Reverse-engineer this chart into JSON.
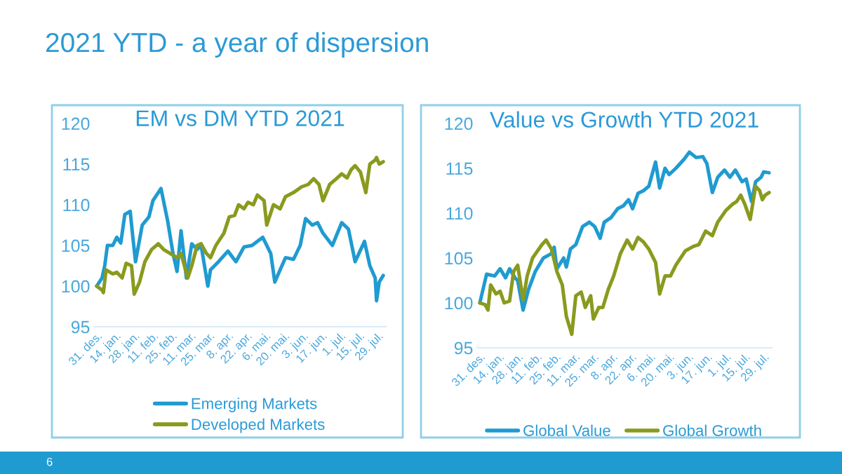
{
  "chart_data": [
    {
      "type": "line",
      "title": "EM vs DM YTD 2021",
      "annotations": [
        "2021 YTD - a year of dispersion",
        "6"
      ],
      "legend": "bottom",
      "grid": false,
      "ylim": [
        95,
        120
      ],
      "yticks": [
        95,
        100,
        105,
        110,
        115,
        120
      ],
      "xlim": [
        "2020-12-29",
        "2021-08-04"
      ],
      "xticks": [
        {
          "value": "2020-12-31",
          "label": "31. des."
        },
        {
          "value": "2021-01-14",
          "label": "14. jan."
        },
        {
          "value": "2021-01-28",
          "label": "28. jan."
        },
        {
          "value": "2021-02-11",
          "label": "11. feb."
        },
        {
          "value": "2021-02-25",
          "label": "25. feb."
        },
        {
          "value": "2021-03-11",
          "label": "11. mar."
        },
        {
          "value": "2021-03-25",
          "label": "25. mar."
        },
        {
          "value": "2021-04-08",
          "label": "8. apr."
        },
        {
          "value": "2021-04-22",
          "label": "22. apr."
        },
        {
          "value": "2021-05-06",
          "label": "6. mai."
        },
        {
          "value": "2021-05-20",
          "label": "20. mai."
        },
        {
          "value": "2021-06-03",
          "label": "3. jun."
        },
        {
          "value": "2021-06-17",
          "label": "17. jun."
        },
        {
          "value": "2021-07-01",
          "label": "1. jul."
        },
        {
          "value": "2021-07-15",
          "label": "15. jul."
        },
        {
          "value": "2021-07-29",
          "label": "29. jul."
        }
      ],
      "series": [
        {
          "name": "Emerging Markets",
          "color": "#1f9bd1",
          "x": [
            "2020-12-31",
            "2021-01-04",
            "2021-01-06",
            "2021-01-08",
            "2021-01-12",
            "2021-01-15",
            "2021-01-18",
            "2021-01-21",
            "2021-01-25",
            "2021-01-27",
            "2021-01-29",
            "2021-02-03",
            "2021-02-08",
            "2021-02-11",
            "2021-02-17",
            "2021-02-22",
            "2021-02-26",
            "2021-03-01",
            "2021-03-04",
            "2021-03-08",
            "2021-03-12",
            "2021-03-16",
            "2021-03-19",
            "2021-03-24",
            "2021-03-26",
            "2021-04-01",
            "2021-04-08",
            "2021-04-14",
            "2021-04-20",
            "2021-04-26",
            "2021-05-04",
            "2021-05-10",
            "2021-05-13",
            "2021-05-17",
            "2021-05-21",
            "2021-05-27",
            "2021-06-01",
            "2021-06-05",
            "2021-06-10",
            "2021-06-14",
            "2021-06-18",
            "2021-06-25",
            "2021-07-02",
            "2021-07-07",
            "2021-07-12",
            "2021-07-19",
            "2021-07-23",
            "2021-07-27",
            "2021-07-28",
            "2021-07-30",
            "2021-08-02"
          ],
          "values": [
            100,
            101,
            102.5,
            105,
            105,
            106,
            105.3,
            108.8,
            109.2,
            106,
            103,
            107.5,
            108.5,
            110.5,
            112,
            108,
            104,
            101.8,
            106.8,
            101,
            105.2,
            104.5,
            105,
            100,
            102,
            103,
            104.3,
            103,
            104.8,
            105,
            106,
            104,
            100.5,
            102,
            103.5,
            103.3,
            105,
            108.3,
            107.5,
            107.8,
            106.5,
            105,
            107.8,
            107,
            103,
            105.5,
            102.5,
            101,
            98.2,
            100.5,
            101.3
          ]
        },
        {
          "name": "Developed Markets",
          "color": "#8a9a1e",
          "x": [
            "2020-12-31",
            "2021-01-04",
            "2021-01-05",
            "2021-01-07",
            "2021-01-12",
            "2021-01-15",
            "2021-01-19",
            "2021-01-22",
            "2021-01-26",
            "2021-01-28",
            "2021-02-01",
            "2021-02-05",
            "2021-02-10",
            "2021-02-15",
            "2021-02-19",
            "2021-02-24",
            "2021-03-01",
            "2021-03-04",
            "2021-03-09",
            "2021-03-12",
            "2021-03-16",
            "2021-03-19",
            "2021-03-23",
            "2021-03-26",
            "2021-03-30",
            "2021-04-05",
            "2021-04-09",
            "2021-04-13",
            "2021-04-16",
            "2021-04-20",
            "2021-04-23",
            "2021-04-27",
            "2021-04-30",
            "2021-05-05",
            "2021-05-07",
            "2021-05-12",
            "2021-05-17",
            "2021-05-21",
            "2021-05-27",
            "2021-06-02",
            "2021-06-07",
            "2021-06-11",
            "2021-06-15",
            "2021-06-18",
            "2021-06-23",
            "2021-06-28",
            "2021-07-02",
            "2021-07-06",
            "2021-07-09",
            "2021-07-12",
            "2021-07-16",
            "2021-07-20",
            "2021-07-23",
            "2021-07-27",
            "2021-07-28",
            "2021-07-30",
            "2021-08-02"
          ],
          "values": [
            100,
            99.5,
            99.2,
            102,
            101.5,
            101.7,
            101,
            102.8,
            102.5,
            99,
            100.5,
            103,
            104.5,
            105.2,
            104.5,
            104,
            103.5,
            104,
            101,
            102.5,
            105,
            105.2,
            104,
            103.5,
            105,
            106.5,
            108.5,
            108.7,
            110,
            109.5,
            110.3,
            110,
            111.2,
            110.5,
            107.5,
            110,
            109.5,
            111,
            111.5,
            112.2,
            112.5,
            113.2,
            112.5,
            110.5,
            112.5,
            113.2,
            113.8,
            113.3,
            114.3,
            114.8,
            114,
            111.5,
            115,
            115.5,
            115.8,
            115,
            115.3
          ]
        }
      ]
    },
    {
      "type": "line",
      "title": "Value vs Growth YTD 2021",
      "legend": "bottom",
      "grid": false,
      "ylim": [
        95,
        120
      ],
      "yticks": [
        95,
        100,
        105,
        110,
        115,
        120
      ],
      "xlim": [
        "2020-12-29",
        "2021-08-04"
      ],
      "xticks": [
        {
          "value": "2020-12-31",
          "label": "31. des."
        },
        {
          "value": "2021-01-14",
          "label": "14. jan."
        },
        {
          "value": "2021-01-28",
          "label": "28. jan."
        },
        {
          "value": "2021-02-11",
          "label": "11. feb."
        },
        {
          "value": "2021-02-25",
          "label": "25. feb."
        },
        {
          "value": "2021-03-11",
          "label": "11. mar."
        },
        {
          "value": "2021-03-25",
          "label": "25. mar."
        },
        {
          "value": "2021-04-08",
          "label": "8. apr."
        },
        {
          "value": "2021-04-22",
          "label": "22. apr."
        },
        {
          "value": "2021-05-06",
          "label": "6. mai."
        },
        {
          "value": "2021-05-20",
          "label": "20. mai."
        },
        {
          "value": "2021-06-03",
          "label": "3. jun."
        },
        {
          "value": "2021-06-17",
          "label": "17. jun."
        },
        {
          "value": "2021-07-01",
          "label": "1. jul."
        },
        {
          "value": "2021-07-15",
          "label": "15. jul."
        },
        {
          "value": "2021-07-29",
          "label": "29. jul."
        }
      ],
      "series": [
        {
          "name": "Global Value",
          "color": "#1f9bd1",
          "x": [
            "2020-12-31",
            "2021-01-05",
            "2021-01-11",
            "2021-01-15",
            "2021-01-19",
            "2021-01-22",
            "2021-01-26",
            "2021-01-28",
            "2021-02-01",
            "2021-02-05",
            "2021-02-10",
            "2021-02-16",
            "2021-02-22",
            "2021-02-24",
            "2021-02-26",
            "2021-03-03",
            "2021-03-05",
            "2021-03-08",
            "2021-03-12",
            "2021-03-17",
            "2021-03-22",
            "2021-03-26",
            "2021-03-30",
            "2021-04-02",
            "2021-04-07",
            "2021-04-12",
            "2021-04-16",
            "2021-04-20",
            "2021-04-23",
            "2021-04-27",
            "2021-05-01",
            "2021-05-05",
            "2021-05-10",
            "2021-05-13",
            "2021-05-17",
            "2021-05-20",
            "2021-05-25",
            "2021-05-31",
            "2021-06-04",
            "2021-06-09",
            "2021-06-14",
            "2021-06-17",
            "2021-06-21",
            "2021-06-25",
            "2021-06-30",
            "2021-07-04",
            "2021-07-08",
            "2021-07-13",
            "2021-07-16",
            "2021-07-20",
            "2021-07-23",
            "2021-07-27",
            "2021-07-29",
            "2021-08-02"
          ],
          "values": [
            100,
            103.2,
            103,
            103.8,
            102.8,
            103.8,
            102.8,
            102.5,
            99.2,
            101.5,
            103.5,
            105,
            105.5,
            106.2,
            103.8,
            105,
            104,
            106,
            106.5,
            108.5,
            109,
            108.5,
            107.2,
            109,
            109.5,
            110.5,
            110.8,
            111.5,
            110.5,
            112.2,
            112.5,
            113,
            115.7,
            112.8,
            115,
            114.3,
            115,
            116,
            116.8,
            116.2,
            116.3,
            115.5,
            112.3,
            114,
            114.8,
            114,
            114.8,
            113.5,
            113.8,
            111.3,
            113.5,
            114,
            114.6,
            114.5
          ]
        },
        {
          "name": "Global Growth",
          "color": "#8a9a1e",
          "x": [
            "2020-12-31",
            "2021-01-04",
            "2021-01-06",
            "2021-01-08",
            "2021-01-12",
            "2021-01-15",
            "2021-01-18",
            "2021-01-22",
            "2021-01-25",
            "2021-01-28",
            "2021-02-01",
            "2021-02-04",
            "2021-02-08",
            "2021-02-15",
            "2021-02-18",
            "2021-02-22",
            "2021-02-26",
            "2021-03-02",
            "2021-03-05",
            "2021-03-09",
            "2021-03-12",
            "2021-03-16",
            "2021-03-19",
            "2021-03-23",
            "2021-03-25",
            "2021-03-29",
            "2021-04-01",
            "2021-04-05",
            "2021-04-09",
            "2021-04-14",
            "2021-04-19",
            "2021-04-23",
            "2021-04-27",
            "2021-05-01",
            "2021-05-05",
            "2021-05-10",
            "2021-05-13",
            "2021-05-17",
            "2021-05-21",
            "2021-05-25",
            "2021-06-01",
            "2021-06-07",
            "2021-06-11",
            "2021-06-16",
            "2021-06-21",
            "2021-06-25",
            "2021-07-01",
            "2021-07-06",
            "2021-07-09",
            "2021-07-12",
            "2021-07-15",
            "2021-07-19",
            "2021-07-23",
            "2021-07-26",
            "2021-07-28",
            "2021-07-30",
            "2021-08-02"
          ],
          "values": [
            100,
            99.8,
            99.2,
            102,
            101,
            101.3,
            100,
            100.2,
            103.5,
            104.2,
            100.3,
            103,
            105,
            106.5,
            107,
            106,
            103.5,
            102,
            98.5,
            96.5,
            100.8,
            101.2,
            99.5,
            100.8,
            98.2,
            99.5,
            99.5,
            101.5,
            103,
            105.5,
            107,
            106,
            107.3,
            106.8,
            106,
            104.5,
            101,
            103,
            103,
            104.2,
            105.8,
            106.3,
            106.5,
            108,
            107.5,
            109,
            110.3,
            111,
            111.3,
            112,
            111,
            109.3,
            113,
            112.5,
            111.5,
            112,
            112.3
          ]
        }
      ]
    }
  ]
}
